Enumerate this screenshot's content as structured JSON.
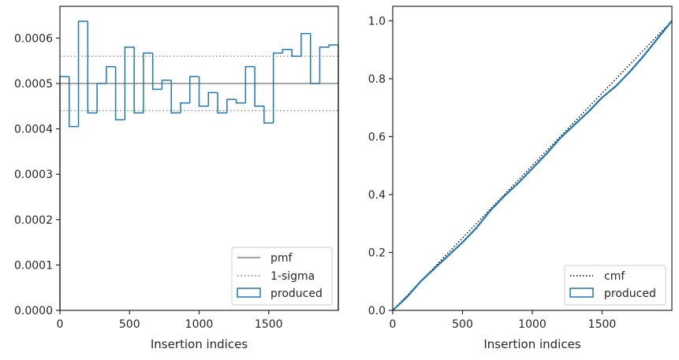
{
  "chart_data": [
    {
      "type": "step",
      "title": "",
      "xlabel": "Insertion indices",
      "ylabel": "",
      "xlim": [
        0,
        2000
      ],
      "ylim": [
        0,
        0.00067
      ],
      "xticks": [
        0,
        500,
        1000,
        1500
      ],
      "xtick_labels": [
        "0",
        "500",
        "1000",
        "1500"
      ],
      "yticks": [
        0,
        0.0001,
        0.0002,
        0.0003,
        0.0004,
        0.0005,
        0.0006
      ],
      "ytick_labels": [
        "0.0000",
        "0.0001",
        "0.0002",
        "0.0003",
        "0.0004",
        "0.0005",
        "0.0006"
      ],
      "grid": false,
      "legend_position": "lower right",
      "legend": [
        "pmf",
        "1-sigma",
        "produced"
      ],
      "reference_lines": {
        "pmf": 0.0005,
        "sigma_upper": 0.00056,
        "sigma_lower": 0.00044
      },
      "series": [
        {
          "name": "produced",
          "color": "#1f77b4",
          "bin_edges": [
            0,
            66.7,
            133.3,
            200,
            266.7,
            333.3,
            400,
            466.7,
            533.3,
            600,
            666.7,
            733.3,
            800,
            866.7,
            933.3,
            1000,
            1066.7,
            1133.3,
            1200,
            1266.7,
            1333.3,
            1400,
            1466.7,
            1533.3,
            1600,
            1666.7,
            1733.3,
            1800,
            1866.7,
            1933.3,
            2000
          ],
          "values": [
            0.000515,
            0.000405,
            0.000637,
            0.000435,
            0.0005,
            0.000537,
            0.00042,
            0.00058,
            0.000435,
            0.000567,
            0.000487,
            0.000507,
            0.000435,
            0.000457,
            0.000515,
            0.00045,
            0.00048,
            0.000435,
            0.000465,
            0.000457,
            0.000537,
            0.00045,
            0.000413,
            0.000567,
            0.000575,
            0.00056,
            0.00061,
            0.0005,
            0.00058,
            0.000585
          ]
        }
      ],
      "colors": {
        "pmf": "#808080",
        "sigma": "#808080"
      }
    },
    {
      "type": "line",
      "title": "",
      "xlabel": "Insertion indices",
      "ylabel": "",
      "xlim": [
        0,
        2000
      ],
      "ylim": [
        0,
        1.05
      ],
      "xticks": [
        0,
        500,
        1000,
        1500
      ],
      "xtick_labels": [
        "0",
        "500",
        "1000",
        "1500"
      ],
      "yticks": [
        0,
        0.2,
        0.4,
        0.6,
        0.8,
        1.0
      ],
      "ytick_labels": [
        "0.0",
        "0.2",
        "0.4",
        "0.6",
        "0.8",
        "1.0"
      ],
      "grid": false,
      "legend_position": "lower right",
      "legend": [
        "cmf",
        "produced"
      ],
      "series": [
        {
          "name": "cmf",
          "color": "#000000",
          "style": "dotted",
          "x": [
            0,
            2000
          ],
          "y": [
            0,
            1.0
          ]
        },
        {
          "name": "produced",
          "color": "#1f77b4",
          "x": [
            0,
            100,
            200,
            300,
            400,
            500,
            600,
            700,
            800,
            900,
            1000,
            1100,
            1200,
            1300,
            1400,
            1500,
            1600,
            1700,
            1800,
            1900,
            2000
          ],
          "y": [
            0,
            0.045,
            0.1,
            0.145,
            0.19,
            0.235,
            0.285,
            0.345,
            0.395,
            0.44,
            0.49,
            0.54,
            0.595,
            0.64,
            0.685,
            0.735,
            0.775,
            0.825,
            0.88,
            0.94,
            1.0
          ]
        }
      ]
    }
  ]
}
